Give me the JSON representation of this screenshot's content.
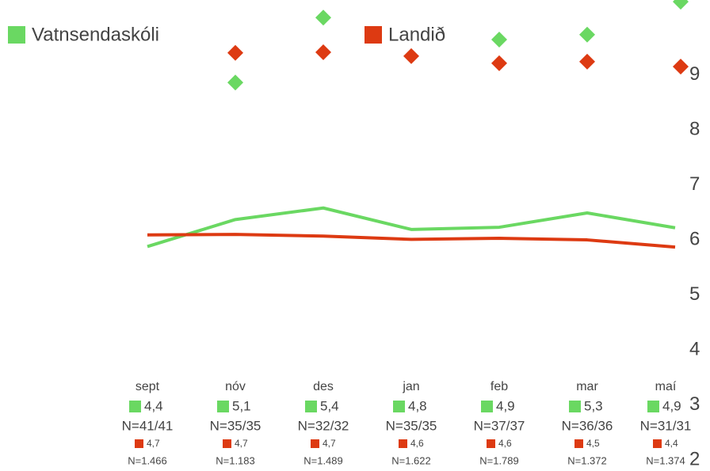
{
  "chart_data": {
    "type": "line",
    "categories": [
      "sept",
      "nóv",
      "des",
      "jan",
      "feb",
      "mar",
      "maí"
    ],
    "series": [
      {
        "name": "Vatnsendaskóli",
        "color": "#6ad862",
        "values": [
          5.88,
          6.37,
          6.58,
          6.19,
          6.23,
          6.49,
          6.22
        ],
        "diamonds": [
          null,
          8.86,
          10.04,
          null,
          9.64,
          9.73,
          10.33
        ]
      },
      {
        "name": "Landið",
        "color": "#dd3a12",
        "values": [
          6.09,
          6.1,
          6.07,
          6.01,
          6.03,
          6.0,
          5.87
        ],
        "diamonds": [
          null,
          9.4,
          9.41,
          9.34,
          9.21,
          9.24,
          9.15
        ]
      }
    ],
    "details": [
      {
        "school": "4,4",
        "school_n": "N=41/41",
        "national": "4,7",
        "national_n": "N=1.466"
      },
      {
        "school": "5,1",
        "school_n": "N=35/35",
        "national": "4,7",
        "national_n": "N=1.183"
      },
      {
        "school": "5,4",
        "school_n": "N=32/32",
        "national": "4,7",
        "national_n": "N=1.489"
      },
      {
        "school": "4,8",
        "school_n": "N=35/35",
        "national": "4,6",
        "national_n": "N=1.622"
      },
      {
        "school": "4,9",
        "school_n": "N=37/37",
        "national": "4,6",
        "national_n": "N=1.789"
      },
      {
        "school": "5,3",
        "school_n": "N=36/36",
        "national": "4,5",
        "national_n": "N=1.372"
      },
      {
        "school": "4,9",
        "school_n": "N=31/31",
        "national": "4,4",
        "national_n": "N=1.374"
      }
    ],
    "ylim": [
      1.8,
      10.36
    ],
    "yticks": [
      2,
      3,
      4,
      5,
      6,
      7,
      8,
      9
    ],
    "grid": false
  }
}
